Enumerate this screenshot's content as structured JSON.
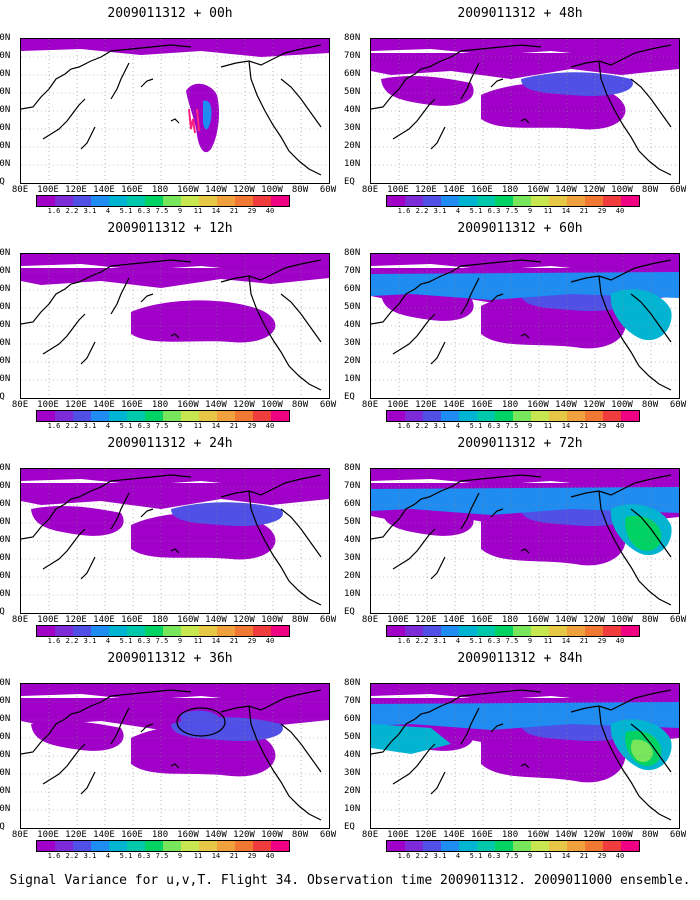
{
  "panels": [
    {
      "title": "2009011312 + 00h",
      "intensity": 0
    },
    {
      "title": "2009011312 + 12h",
      "intensity": 1
    },
    {
      "title": "2009011312 + 24h",
      "intensity": 2
    },
    {
      "title": "2009011312 + 36h",
      "intensity": 3
    },
    {
      "title": "2009011312 + 48h",
      "intensity": 2
    },
    {
      "title": "2009011312 + 60h",
      "intensity": 4
    },
    {
      "title": "2009011312 + 72h",
      "intensity": 5
    },
    {
      "title": "2009011312 + 84h",
      "intensity": 6
    }
  ],
  "lat_labels": [
    "80N",
    "70N",
    "60N",
    "50N",
    "40N",
    "30N",
    "20N",
    "10N",
    "EQ"
  ],
  "lon_labels": [
    "80E",
    "100E",
    "120E",
    "140E",
    "160E",
    "180",
    "160W",
    "140W",
    "120W",
    "100W",
    "80W",
    "60W"
  ],
  "colorbar": {
    "labels": [
      "1.6",
      "2.2",
      "3.1",
      "4",
      "5.1",
      "6.3",
      "7.5",
      "9",
      "11",
      "14",
      "21",
      "29",
      "40"
    ],
    "colors": [
      "#a000c8",
      "#7d2bd8",
      "#5050e6",
      "#1e8cf0",
      "#00b4d2",
      "#00c8aa",
      "#00d264",
      "#78e65a",
      "#c8e650",
      "#e6c846",
      "#f0a03c",
      "#f07832",
      "#f03c3c",
      "#f00082"
    ]
  },
  "caption": "Signal Variance for u,v,T. Flight 34. Observation time 2009011312. 2009011000 ensemble."
}
